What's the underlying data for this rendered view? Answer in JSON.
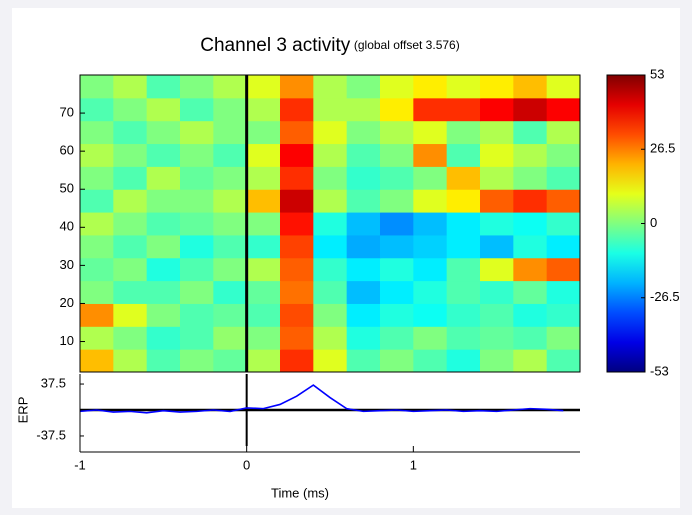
{
  "chart_data": [
    {
      "type": "heatmap",
      "title": "Channel 3 activity",
      "subtitle": "(global offset 3.576)",
      "x": [
        -0.9,
        -0.7,
        -0.5,
        -0.3,
        -0.1,
        0.1,
        0.3,
        0.5,
        0.7,
        0.9,
        1.1,
        1.3,
        1.5,
        1.7,
        1.9
      ],
      "y": [
        5,
        11,
        17,
        23,
        29,
        35,
        41,
        47,
        53,
        59,
        65,
        71,
        77
      ],
      "z": [
        [
          20,
          5,
          -5,
          0,
          -3,
          5,
          35,
          10,
          -5,
          0,
          -5,
          -10,
          0,
          5,
          -5
        ],
        [
          5,
          0,
          -8,
          -5,
          2,
          0,
          30,
          5,
          -10,
          -5,
          0,
          -5,
          -3,
          -5,
          0
        ],
        [
          25,
          10,
          0,
          -5,
          -3,
          -5,
          32,
          0,
          -15,
          -10,
          -12,
          -8,
          -5,
          -10,
          -8
        ],
        [
          0,
          -5,
          -5,
          0,
          -8,
          -3,
          28,
          -5,
          -20,
          -15,
          -10,
          -5,
          -8,
          -3,
          -10
        ],
        [
          -3,
          0,
          -10,
          -5,
          0,
          5,
          30,
          -8,
          -15,
          -10,
          -15,
          -5,
          10,
          25,
          30
        ],
        [
          0,
          -5,
          0,
          -10,
          -5,
          -8,
          33,
          -15,
          -22,
          -20,
          -18,
          -15,
          -20,
          -10,
          -15
        ],
        [
          5,
          0,
          -5,
          -3,
          0,
          0,
          38,
          -10,
          -20,
          -25,
          -20,
          -15,
          -10,
          -12,
          -8
        ],
        [
          -5,
          5,
          0,
          0,
          5,
          20,
          45,
          5,
          -5,
          0,
          10,
          15,
          30,
          35,
          30
        ],
        [
          0,
          -5,
          5,
          -3,
          0,
          5,
          35,
          0,
          -8,
          -5,
          0,
          20,
          5,
          0,
          -5
        ],
        [
          5,
          0,
          -5,
          0,
          -5,
          10,
          40,
          5,
          -5,
          0,
          25,
          -5,
          10,
          5,
          0
        ],
        [
          0,
          -5,
          0,
          5,
          0,
          0,
          30,
          10,
          0,
          5,
          10,
          0,
          5,
          -5,
          5
        ],
        [
          -5,
          0,
          5,
          -5,
          0,
          5,
          35,
          5,
          5,
          15,
          35,
          35,
          40,
          45,
          40
        ],
        [
          0,
          5,
          -5,
          0,
          5,
          10,
          25,
          5,
          0,
          10,
          15,
          10,
          15,
          20,
          10
        ]
      ],
      "xlim": [
        -1,
        2
      ],
      "ylim": [
        2,
        80
      ],
      "yticks": [
        10,
        20,
        30,
        40,
        50,
        60,
        70
      ],
      "clim": [
        -53,
        53
      ],
      "colorbar_ticks": [
        53,
        26.5,
        0,
        -26.5,
        -53
      ],
      "colormap": "jet"
    },
    {
      "type": "line",
      "ylabel": "ERP",
      "xlabel": "Time (ms)",
      "x": [
        -1,
        -0.9,
        -0.8,
        -0.7,
        -0.6,
        -0.5,
        -0.4,
        -0.3,
        -0.2,
        -0.1,
        0,
        0.1,
        0.2,
        0.3,
        0.4,
        0.5,
        0.6,
        0.7,
        0.8,
        0.9,
        1,
        1.1,
        1.2,
        1.3,
        1.4,
        1.5,
        1.6,
        1.7,
        1.8,
        1.9
      ],
      "series": [
        {
          "color": "#0000ff",
          "values": [
            -2,
            0,
            -3,
            -2,
            -4,
            -1,
            -3,
            -2,
            0,
            -2,
            3,
            2,
            8,
            20,
            36,
            18,
            2,
            -2,
            -1,
            0,
            -2,
            -1,
            0,
            -2,
            -1,
            -2,
            0,
            2,
            1,
            -1
          ]
        }
      ],
      "xlim": [
        -1,
        2
      ],
      "ylim": [
        -52,
        52
      ],
      "xticks": [
        -1,
        0,
        1
      ],
      "yticks": [
        -37.5,
        37.5
      ]
    }
  ]
}
